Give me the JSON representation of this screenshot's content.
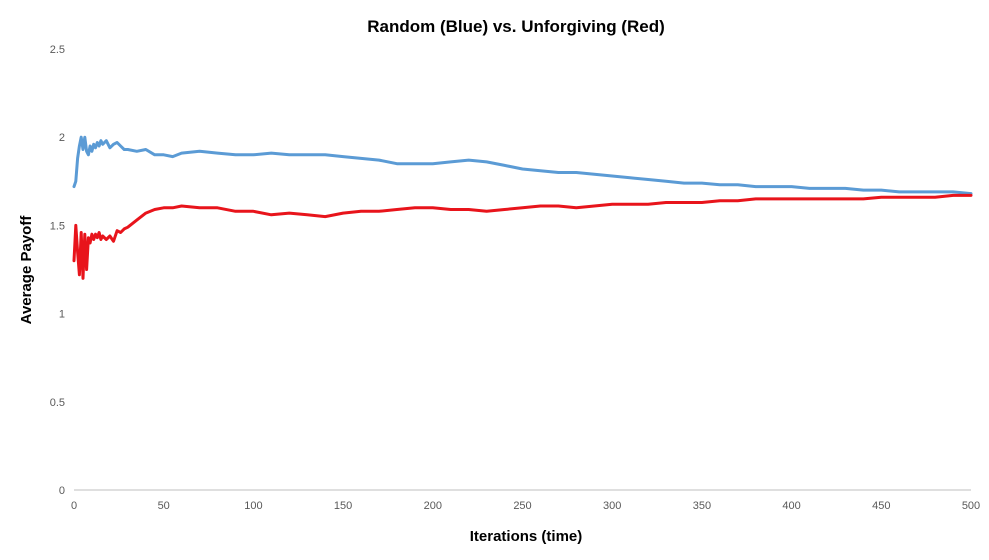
{
  "chart_data": {
    "type": "line",
    "title": "Random (Blue) vs. Unforgiving (Red)",
    "xlabel": "Iterations (time)",
    "ylabel": "Average Payoff",
    "xlim": [
      0,
      500
    ],
    "ylim": [
      0,
      2.5
    ],
    "x_ticks": [
      0,
      50,
      100,
      150,
      200,
      250,
      300,
      350,
      400,
      450,
      500
    ],
    "y_ticks": [
      0,
      0.5,
      1,
      1.5,
      2,
      2.5
    ],
    "x_tick_labels": [
      "0",
      "50",
      "100",
      "150",
      "200",
      "250",
      "300",
      "350",
      "400",
      "450",
      "500"
    ],
    "y_tick_labels": [
      "0",
      "0.5",
      "1",
      "1.5",
      "2",
      "2.5"
    ],
    "grid": false,
    "legend": "none",
    "series": [
      {
        "color": "#5B9BD5",
        "x": [
          0,
          1,
          2,
          3,
          4,
          5,
          6,
          7,
          8,
          9,
          10,
          11,
          12,
          13,
          14,
          15,
          16,
          18,
          20,
          22,
          24,
          26,
          28,
          30,
          35,
          40,
          45,
          50,
          55,
          60,
          70,
          80,
          90,
          100,
          110,
          120,
          130,
          140,
          150,
          160,
          170,
          180,
          190,
          200,
          210,
          220,
          230,
          240,
          250,
          260,
          270,
          280,
          290,
          300,
          310,
          320,
          330,
          340,
          350,
          360,
          370,
          380,
          390,
          400,
          410,
          420,
          430,
          440,
          450,
          460,
          470,
          480,
          490,
          500
        ],
        "y": [
          1.72,
          1.75,
          1.88,
          1.95,
          2.0,
          1.93,
          2.0,
          1.92,
          1.9,
          1.95,
          1.92,
          1.96,
          1.94,
          1.97,
          1.95,
          1.98,
          1.96,
          1.98,
          1.94,
          1.96,
          1.97,
          1.95,
          1.93,
          1.93,
          1.92,
          1.93,
          1.9,
          1.9,
          1.89,
          1.91,
          1.92,
          1.91,
          1.9,
          1.9,
          1.91,
          1.9,
          1.9,
          1.9,
          1.89,
          1.88,
          1.87,
          1.85,
          1.85,
          1.85,
          1.86,
          1.87,
          1.86,
          1.84,
          1.82,
          1.81,
          1.8,
          1.8,
          1.79,
          1.78,
          1.77,
          1.76,
          1.75,
          1.74,
          1.74,
          1.73,
          1.73,
          1.72,
          1.72,
          1.72,
          1.71,
          1.71,
          1.71,
          1.7,
          1.7,
          1.69,
          1.69,
          1.69,
          1.69,
          1.68
        ]
      },
      {
        "color": "#E8141B",
        "x": [
          0,
          1,
          2,
          3,
          4,
          5,
          6,
          7,
          8,
          9,
          10,
          11,
          12,
          13,
          14,
          15,
          16,
          18,
          20,
          22,
          24,
          26,
          28,
          30,
          35,
          40,
          45,
          50,
          55,
          60,
          70,
          80,
          90,
          100,
          110,
          120,
          130,
          140,
          150,
          160,
          170,
          180,
          190,
          200,
          210,
          220,
          230,
          240,
          250,
          260,
          270,
          280,
          290,
          300,
          310,
          320,
          330,
          340,
          350,
          360,
          370,
          380,
          390,
          400,
          410,
          420,
          430,
          440,
          450,
          460,
          470,
          480,
          490,
          500
        ],
        "y": [
          1.3,
          1.5,
          1.35,
          1.22,
          1.46,
          1.2,
          1.45,
          1.25,
          1.43,
          1.4,
          1.45,
          1.42,
          1.45,
          1.43,
          1.46,
          1.42,
          1.44,
          1.42,
          1.44,
          1.41,
          1.47,
          1.46,
          1.48,
          1.49,
          1.53,
          1.57,
          1.59,
          1.6,
          1.6,
          1.61,
          1.6,
          1.6,
          1.58,
          1.58,
          1.56,
          1.57,
          1.56,
          1.55,
          1.57,
          1.58,
          1.58,
          1.59,
          1.6,
          1.6,
          1.59,
          1.59,
          1.58,
          1.59,
          1.6,
          1.61,
          1.61,
          1.6,
          1.61,
          1.62,
          1.62,
          1.62,
          1.63,
          1.63,
          1.63,
          1.64,
          1.64,
          1.65,
          1.65,
          1.65,
          1.65,
          1.65,
          1.65,
          1.65,
          1.66,
          1.66,
          1.66,
          1.66,
          1.67,
          1.67
        ]
      }
    ]
  }
}
